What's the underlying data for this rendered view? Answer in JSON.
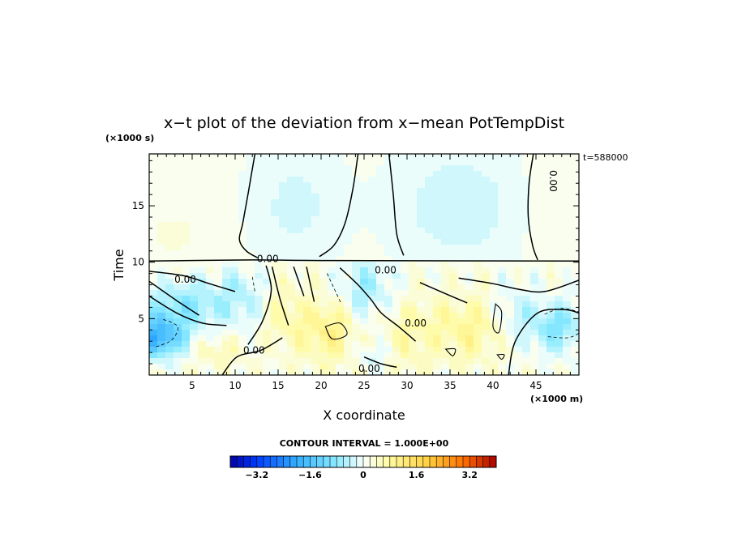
{
  "chart_data": {
    "type": "heatmap",
    "title": "x−t plot of the deviation from x−mean PotTempDist",
    "xlabel": "X coordinate",
    "ylabel": "Time",
    "x_units": "(×1000 m)",
    "y_units": "(×1000 s)",
    "time_annotation": "t=588000",
    "xlim": [
      0,
      50
    ],
    "ylim": [
      0,
      19.6
    ],
    "x_ticks": [
      5,
      10,
      15,
      20,
      25,
      30,
      35,
      40,
      45
    ],
    "x_tick_labels": [
      "5",
      "10",
      "15",
      "20",
      "25",
      "30",
      "35",
      "40",
      "45"
    ],
    "y_ticks": [
      5,
      10,
      15
    ],
    "y_tick_labels": [
      "5",
      "10",
      "15"
    ],
    "contour_interval_label": "CONTOUR INTERVAL = 1.000E+00",
    "contour_labels": [
      {
        "text": "0.00",
        "x": 4.2,
        "y": 8.2
      },
      {
        "text": "0.00",
        "x": 12.2,
        "y": 1.9
      },
      {
        "text": "0.00",
        "x": 13.8,
        "y": 10.0
      },
      {
        "text": "0.00",
        "x": 25.6,
        "y": 0.3
      },
      {
        "text": "0.00",
        "x": 27.5,
        "y": 9.0
      },
      {
        "text": "0.00",
        "x": 31.0,
        "y": 4.3
      },
      {
        "text": "0.00",
        "x": 46.6,
        "y": 17.2
      }
    ],
    "colorbar": {
      "min": -4.0,
      "max": 4.0,
      "steps": 40,
      "tick_values": [
        -3.2,
        -1.6,
        0,
        1.6,
        3.2
      ],
      "tick_labels": [
        "−3.2",
        "−1.6",
        "0",
        "1.6",
        "3.2"
      ]
    }
  }
}
